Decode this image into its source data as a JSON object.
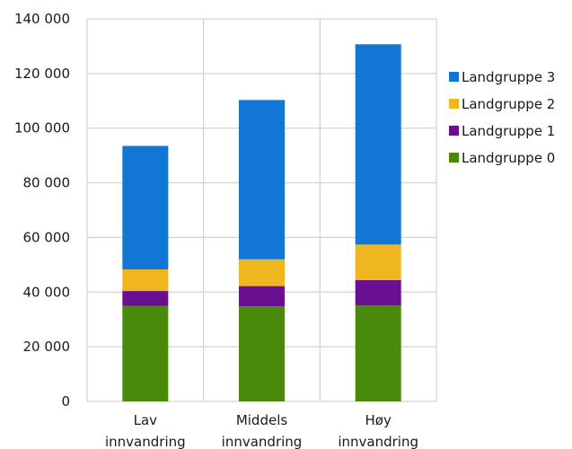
{
  "chart_data": {
    "type": "bar",
    "stacked": true,
    "categories": [
      [
        "Lav",
        "innvandring"
      ],
      [
        "Middels",
        "innvandring"
      ],
      [
        "Høy",
        "innvandring"
      ]
    ],
    "series": [
      {
        "name": "Landgruppe 0",
        "color": "#4a8a0a",
        "values": [
          35000,
          34800,
          35100
        ]
      },
      {
        "name": "Landgruppe 1",
        "color": "#6a0f8f",
        "values": [
          5400,
          7400,
          9300
        ]
      },
      {
        "name": "Landgruppe 2",
        "color": "#efb620",
        "values": [
          7900,
          9800,
          13000
        ]
      },
      {
        "name": "Landgruppe 3",
        "color": "#1176d4",
        "values": [
          45200,
          58300,
          73300
        ]
      }
    ],
    "yticks": [
      0,
      20000,
      40000,
      60000,
      80000,
      100000,
      120000,
      140000
    ],
    "ytick_labels": [
      "0",
      "20 000",
      "40 000",
      "60 000",
      "80 000",
      "100 000",
      "120 000",
      "140 000"
    ],
    "ylim": [
      0,
      140000
    ],
    "grid": true,
    "legend_position": "right",
    "legend_order": [
      "Landgruppe 3",
      "Landgruppe 2",
      "Landgruppe 1",
      "Landgruppe 0"
    ]
  }
}
